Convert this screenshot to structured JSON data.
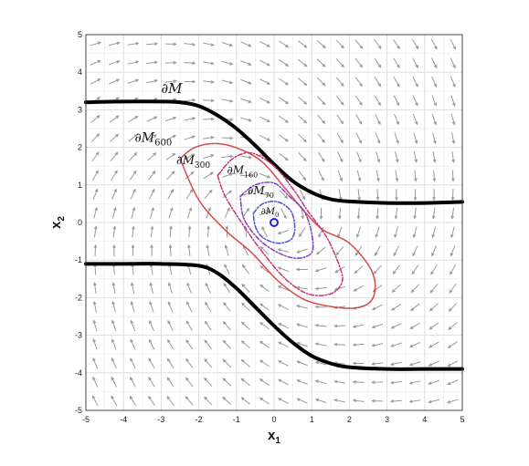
{
  "chart_data": {
    "type": "line",
    "xlabel": "x",
    "xlabel_sub": "1",
    "ylabel": "x",
    "ylabel_sub": "2",
    "xlim": [
      -5,
      5
    ],
    "ylim": [
      -5,
      5
    ],
    "xticks": [
      "-5",
      "-4",
      "-3",
      "-2",
      "-1",
      "0",
      "1",
      "2",
      "3",
      "4",
      "5"
    ],
    "yticks": [
      "-5",
      "-4",
      "-3",
      "-2",
      "-1",
      "0",
      "1",
      "2",
      "3",
      "4",
      "5"
    ],
    "grid": true,
    "minor_grid": true,
    "vector_field": {
      "spacing": 0.5,
      "color": "#9a9a9a"
    },
    "origin_marker": {
      "x": 0,
      "y": 0,
      "shape": "circle",
      "color": "#1f1fd6"
    },
    "series": [
      {
        "name": "∂M",
        "color": "#000000",
        "style": "solid",
        "x": [
          -5,
          -4,
          -3,
          -2.5,
          -2,
          -1.5,
          -1,
          -0.5,
          0,
          0.5,
          1,
          1.5,
          2,
          3,
          4,
          5
        ],
        "y": [
          3.2,
          3.22,
          3.22,
          3.2,
          3.1,
          2.85,
          2.5,
          2.05,
          1.55,
          1.1,
          0.8,
          0.62,
          0.56,
          0.52,
          0.52,
          0.55
        ]
      },
      {
        "name": "",
        "color": "#000000",
        "style": "solid",
        "x": [
          -5,
          -4,
          -3,
          -2,
          -1.5,
          -1,
          -0.5,
          0,
          0.5,
          1,
          1.5,
          2,
          3,
          4,
          5
        ],
        "y": [
          -1.1,
          -1.1,
          -1.1,
          -1.15,
          -1.35,
          -1.75,
          -2.25,
          -2.75,
          -3.2,
          -3.55,
          -3.75,
          -3.85,
          -3.9,
          -3.9,
          -3.9
        ]
      },
      {
        "name": "∂M600",
        "color": "#d84a4a",
        "style": "solid",
        "x": [
          -2.5,
          -2.1,
          -1.5,
          -0.9,
          -0.3,
          0.3,
          0.8,
          1.3,
          2.0,
          2.6,
          2.65,
          2.3,
          1.6,
          0.8,
          0.1,
          -0.6,
          -1.3,
          -2.0,
          -2.5
        ],
        "y": [
          1.7,
          2.0,
          2.1,
          1.95,
          1.6,
          0.9,
          0.3,
          -0.2,
          -0.55,
          -1.3,
          -1.95,
          -2.25,
          -2.25,
          -2.05,
          -1.55,
          -0.8,
          -0.2,
          0.6,
          1.7
        ]
      },
      {
        "name": "∂M300",
        "color": "#c8307a",
        "style": "dashdot",
        "x": [
          -1.5,
          -1.1,
          -0.6,
          0.0,
          0.5,
          0.9,
          1.4,
          1.75,
          1.8,
          1.5,
          0.9,
          0.3,
          -0.3,
          -0.8,
          -1.3,
          -1.5
        ],
        "y": [
          1.25,
          1.7,
          1.85,
          1.5,
          0.9,
          0.3,
          -0.4,
          -1.2,
          -1.6,
          -1.9,
          -1.9,
          -1.5,
          -0.8,
          -0.1,
          0.7,
          1.25
        ]
      },
      {
        "name": "∂M160",
        "color": "#8040c0",
        "style": "dashdot",
        "x": [
          -0.9,
          -0.5,
          0.0,
          0.4,
          0.8,
          1.0,
          1.0,
          0.6,
          0.1,
          -0.4,
          -0.8,
          -0.9
        ],
        "y": [
          0.7,
          1.0,
          1.05,
          0.7,
          0.3,
          -0.3,
          -0.8,
          -0.95,
          -0.8,
          -0.45,
          0.1,
          0.7
        ]
      },
      {
        "name": "∂M70",
        "color": "#5050d0",
        "style": "dashdot",
        "x": [
          -0.55,
          -0.3,
          0.1,
          0.45,
          0.55,
          0.45,
          0.1,
          -0.3,
          -0.5,
          -0.55
        ],
        "y": [
          0.25,
          0.5,
          0.55,
          0.3,
          -0.15,
          -0.45,
          -0.55,
          -0.4,
          -0.1,
          0.25
        ]
      }
    ],
    "annotations": [
      {
        "text": "∂M",
        "sub": "",
        "x": -3.0,
        "y": 3.45,
        "size": 15
      },
      {
        "text": "∂M",
        "sub": "600",
        "x": -3.7,
        "y": 2.15,
        "size": 14
      },
      {
        "text": "∂M",
        "sub": "300",
        "x": -2.6,
        "y": 1.55,
        "size": 13
      },
      {
        "text": "∂M",
        "sub": "160",
        "x": -1.25,
        "y": 1.3,
        "size": 12
      },
      {
        "text": "∂M",
        "sub": "70",
        "x": -0.7,
        "y": 0.75,
        "size": 12
      },
      {
        "text": "∂M",
        "sub": "0",
        "x": -0.35,
        "y": 0.22,
        "size": 10
      }
    ]
  }
}
